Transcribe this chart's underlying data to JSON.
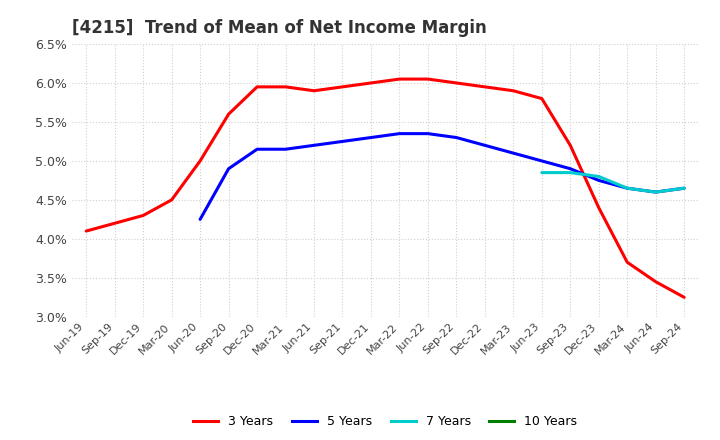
{
  "title": "[4215]  Trend of Mean of Net Income Margin",
  "ylim": [
    0.03,
    0.065
  ],
  "yticks": [
    0.03,
    0.035,
    0.04,
    0.045,
    0.05,
    0.055,
    0.06,
    0.065
  ],
  "background_color": "#ffffff",
  "grid_color": "#d0d0d0",
  "series": {
    "3 Years": {
      "color": "#ff0000",
      "data_y": [
        0.041,
        0.042,
        0.043,
        0.045,
        0.05,
        0.056,
        0.0595,
        0.0595,
        0.059,
        0.0595,
        0.06,
        0.0605,
        0.0605,
        0.06,
        0.0595,
        0.059,
        0.058,
        0.052,
        0.044,
        0.037,
        0.0345,
        0.0325
      ]
    },
    "5 Years": {
      "color": "#0000ff",
      "data_y": [
        null,
        null,
        null,
        null,
        0.0425,
        0.049,
        0.0515,
        0.0515,
        0.052,
        0.0525,
        0.053,
        0.0535,
        0.0535,
        0.053,
        0.052,
        0.051,
        0.05,
        0.049,
        0.0475,
        0.0465,
        0.046,
        0.0465
      ]
    },
    "7 Years": {
      "color": "#00cccc",
      "data_y": [
        null,
        null,
        null,
        null,
        null,
        null,
        null,
        null,
        null,
        null,
        null,
        null,
        null,
        null,
        null,
        null,
        0.0485,
        0.0485,
        0.048,
        0.0465,
        0.046,
        0.0465
      ]
    },
    "10 Years": {
      "color": "#008000",
      "data_y": [
        null,
        null,
        null,
        null,
        null,
        null,
        null,
        null,
        null,
        null,
        null,
        null,
        null,
        null,
        null,
        null,
        null,
        null,
        null,
        null,
        null,
        null
      ]
    }
  },
  "xtick_labels": [
    "Jun-19",
    "Sep-19",
    "Dec-19",
    "Mar-20",
    "Jun-20",
    "Sep-20",
    "Dec-20",
    "Mar-21",
    "Jun-21",
    "Sep-21",
    "Dec-21",
    "Mar-22",
    "Jun-22",
    "Sep-22",
    "Dec-22",
    "Mar-23",
    "Jun-23",
    "Sep-23",
    "Dec-23",
    "Mar-24",
    "Jun-24",
    "Sep-24"
  ],
  "legend_labels": [
    "3 Years",
    "5 Years",
    "7 Years",
    "10 Years"
  ],
  "legend_colors": [
    "#ff0000",
    "#0000ff",
    "#00cccc",
    "#008000"
  ]
}
